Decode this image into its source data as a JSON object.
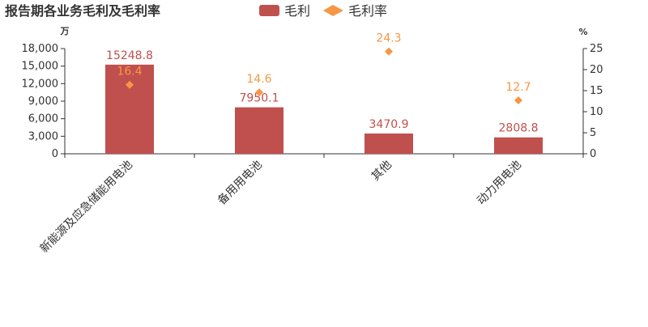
{
  "chart_data": {
    "type": "bar",
    "title": "报告期各业务毛利及毛利率",
    "y_unit": "万",
    "y2_unit": "%",
    "categories": [
      "新能源及应急储能用电池",
      "备用用电池",
      "其他",
      "动力用电池"
    ],
    "series": [
      {
        "name": "毛利",
        "type": "bar",
        "color": "#c0504d",
        "values": [
          15248.8,
          7950.1,
          3470.9,
          2808.8
        ]
      },
      {
        "name": "毛利率",
        "type": "scatter",
        "axis": "y2",
        "color": "#f79646",
        "values": [
          16.4,
          14.6,
          24.3,
          12.7
        ]
      }
    ],
    "ylim": [
      0,
      18000
    ],
    "yticks": [
      0,
      {
        "value": 3000,
        "label": "3,000"
      },
      {
        "value": 6000,
        "label": "6,000"
      },
      {
        "value": 9000,
        "label": "9,000"
      },
      {
        "value": 12000,
        "label": "12,000"
      },
      {
        "value": 15000,
        "label": "15,000"
      },
      {
        "value": 18000,
        "label": "18,000"
      }
    ],
    "y2lim": [
      0,
      25
    ],
    "y2ticks": [
      0,
      5,
      10,
      15,
      20,
      25
    ]
  }
}
